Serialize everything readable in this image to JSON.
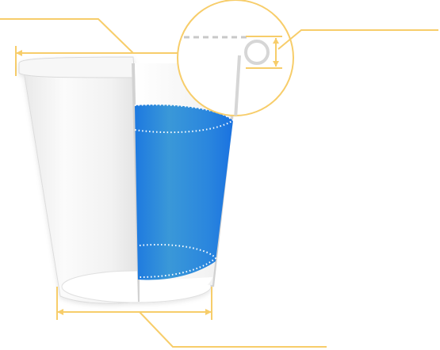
{
  "diagram": {
    "subject": "paper-cup-cross-section",
    "callouts": [
      {
        "id": "top-diameter",
        "target": "top-rim-width"
      },
      {
        "id": "rim-curl",
        "target": "rolled-rim-detail"
      },
      {
        "id": "bottom-diameter",
        "target": "bottom-width"
      }
    ],
    "colors": {
      "annotation": "#f7cd6a",
      "liquid_dark": "#1d79e0",
      "liquid_light": "#3a98d8",
      "cup_body": "#f4f4f4",
      "cup_edge": "#d8d8d8",
      "dotted": "#ffffff",
      "dashed_gray": "#c8c8c8"
    }
  }
}
